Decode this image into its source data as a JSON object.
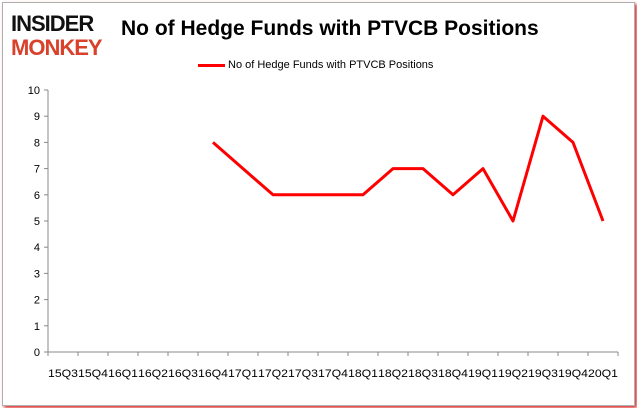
{
  "logo": {
    "line1": "INSIDER",
    "line2": "MONKEY"
  },
  "chart_data": {
    "type": "line",
    "title": "No of Hedge Funds with PTVCB Positions",
    "xlabel": "",
    "ylabel": "",
    "categories": [
      "15Q3",
      "15Q4",
      "16Q1",
      "16Q2",
      "16Q3",
      "16Q4",
      "17Q1",
      "17Q2",
      "17Q3",
      "17Q4",
      "18Q1",
      "18Q2",
      "18Q3",
      "18Q4",
      "19Q1",
      "19Q2",
      "19Q3",
      "19Q4",
      "20Q1"
    ],
    "series": [
      {
        "name": "No of Hedge Funds with PTVCB Positions",
        "color": "#ff0000",
        "values": [
          null,
          null,
          null,
          null,
          null,
          8,
          7,
          6,
          6,
          6,
          6,
          7,
          7,
          6,
          7,
          5,
          9,
          8,
          5
        ]
      }
    ],
    "ylim": [
      0,
      10
    ],
    "yticks": [
      0,
      1,
      2,
      3,
      4,
      5,
      6,
      7,
      8,
      9,
      10
    ],
    "grid": false,
    "legend": "top"
  }
}
